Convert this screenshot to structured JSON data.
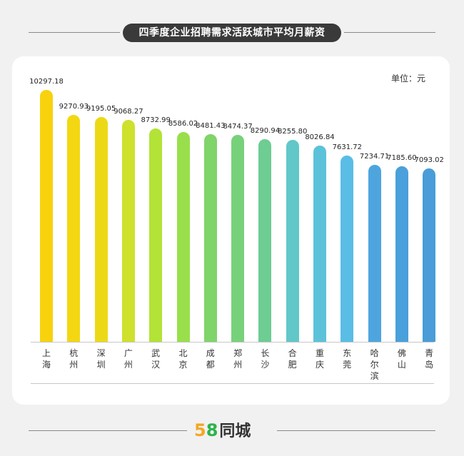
{
  "chart_data": {
    "type": "bar",
    "title": "四季度企业招聘需求活跃城市平均月薪资",
    "unit_label": "单位：元",
    "categories": [
      "上海",
      "杭州",
      "深圳",
      "广州",
      "武汉",
      "北京",
      "成都",
      "郑州",
      "长沙",
      "合肥",
      "重庆",
      "东莞",
      "哈尔滨",
      "佛山",
      "青岛"
    ],
    "values": [
      10297.18,
      9270.93,
      9195.05,
      9068.27,
      8732.99,
      8586.02,
      8481.43,
      8474.37,
      8290.94,
      8255.8,
      8026.84,
      7631.72,
      7234.71,
      7185.6,
      7093.02
    ],
    "value_labels": [
      "10297.18",
      "9270.93",
      "9195.05",
      "9068.27",
      "8732.99",
      "8586.02",
      "8481.43",
      "8474.37",
      "8290.94",
      "8255.80",
      "8026.84",
      "7631.72",
      "7234.71",
      "7185.60",
      "7093.02"
    ],
    "colors": [
      "#f8d20c",
      "#f3d712",
      "#ecd916",
      "#cde12d",
      "#b2e336",
      "#99df4b",
      "#7fd46a",
      "#77d17a",
      "#6dcd93",
      "#62c7c9",
      "#5cc2da",
      "#59bde6",
      "#4ea5de",
      "#4aa0db",
      "#4a9dd8"
    ],
    "ylim": [
      0,
      10800
    ]
  },
  "brand": {
    "logo_num_5": "5",
    "logo_num_8": "8",
    "logo_text": "同城"
  }
}
